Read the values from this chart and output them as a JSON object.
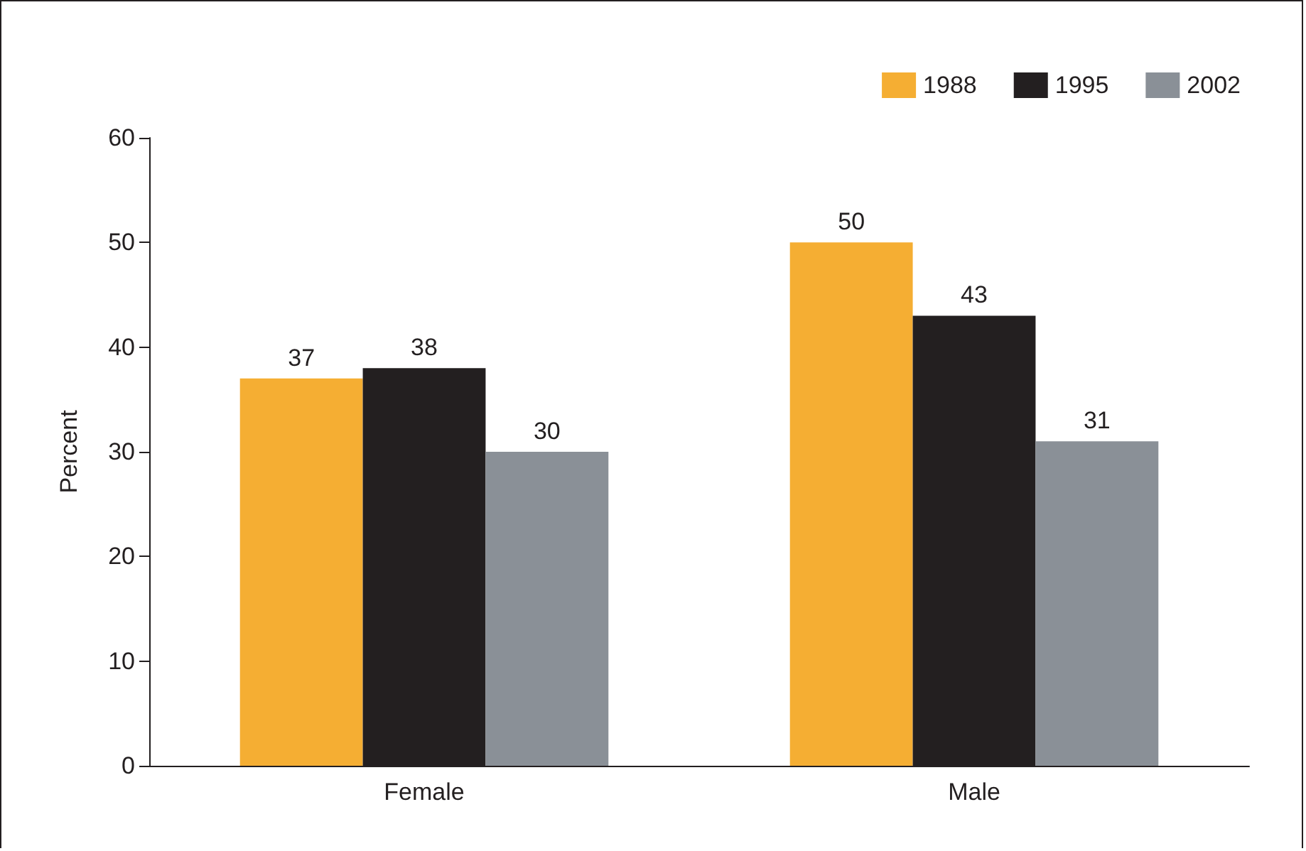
{
  "chart_data": {
    "type": "bar",
    "ylabel": "Percent",
    "categories": [
      "Female",
      "Male"
    ],
    "series": [
      {
        "name": "1988",
        "color": "#f5ae33",
        "values": [
          37,
          50
        ]
      },
      {
        "name": "1995",
        "color": "#231f20",
        "values": [
          38,
          43
        ]
      },
      {
        "name": "2002",
        "color": "#8a9097",
        "values": [
          30,
          31
        ]
      }
    ],
    "ylim": [
      0,
      60
    ],
    "yticks": [
      0,
      10,
      20,
      30,
      40,
      50,
      60
    ],
    "grid": false,
    "legend": "top right",
    "data_labels": true
  }
}
